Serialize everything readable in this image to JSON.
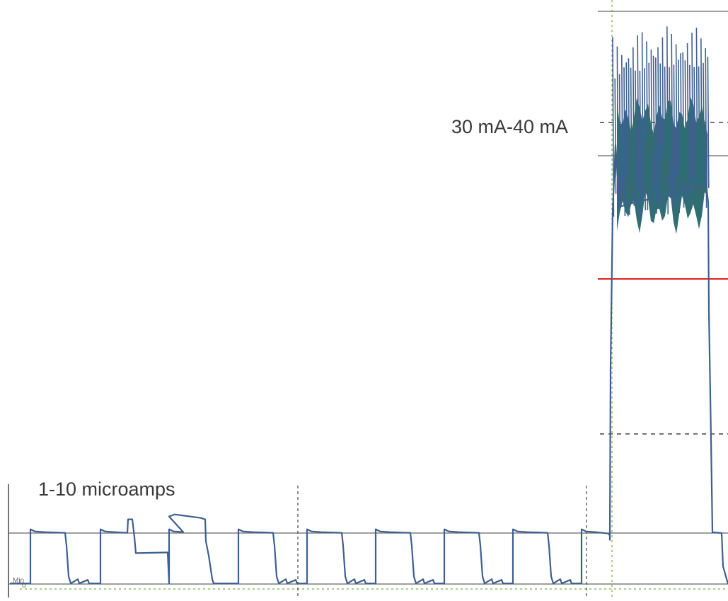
{
  "chart_data": {
    "type": "line",
    "title": "",
    "xlabel": "",
    "ylabel": "",
    "grid": false,
    "legend": "none",
    "annotations": {
      "high_current": "30 mA-40 mA",
      "low_current": "1-10 microamps",
      "min_marker": "Min",
      "min_zero": "0"
    },
    "colors": {
      "trace": "#3e5f8f",
      "fill": "#2e7071",
      "threshold": "#e02020",
      "guide": "#6fb040",
      "reference": "#666666",
      "dashed": "#444444",
      "text": "#3a3a3a"
    },
    "trace_levels": {
      "baseline": 0.1,
      "low_pulse": 9.2,
      "low_step_mid": 5.4,
      "low_step_high": 11.8,
      "high_peak_max": 100,
      "high_band_top": 82,
      "high_band_bottom": 70,
      "high_lower_envelope": 57,
      "threshold": 51
    }
  }
}
